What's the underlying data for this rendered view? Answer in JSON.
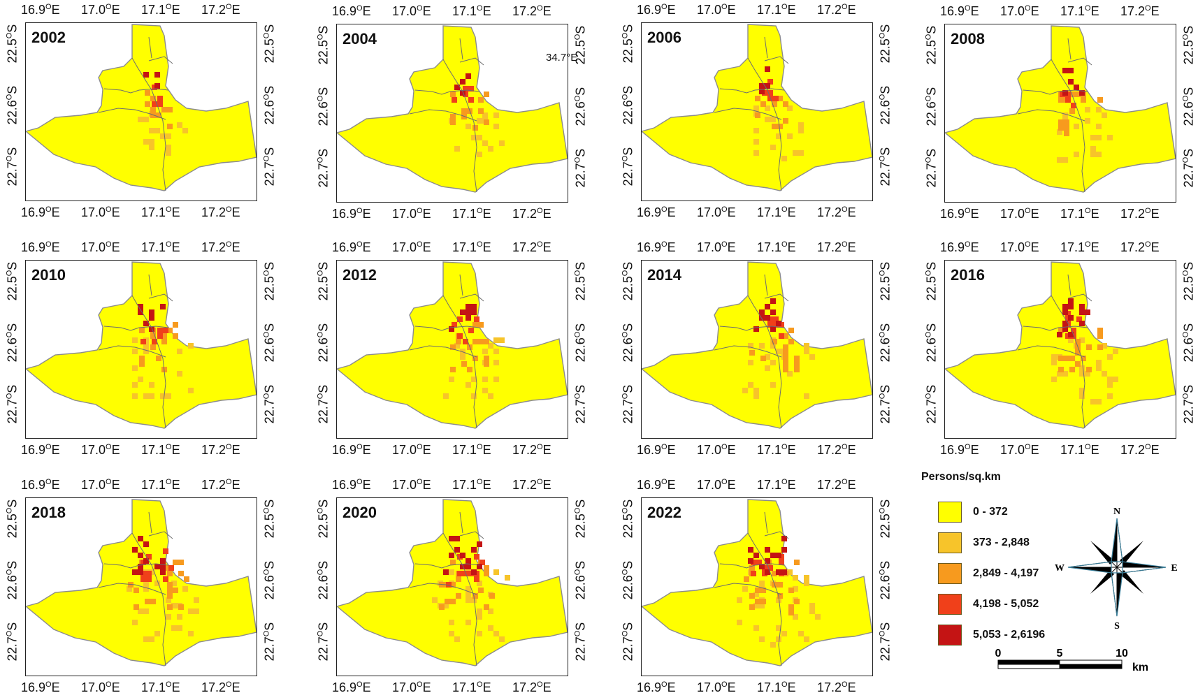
{
  "panels": [
    {
      "year": "2002",
      "note": ""
    },
    {
      "year": "2004",
      "note": "34.7°E"
    },
    {
      "year": "2006",
      "note": ""
    },
    {
      "year": "2008",
      "note": ""
    },
    {
      "year": "2010",
      "note": ""
    },
    {
      "year": "2012",
      "note": ""
    },
    {
      "year": "2014",
      "note": ""
    },
    {
      "year": "2016",
      "note": ""
    },
    {
      "year": "2018",
      "note": ""
    },
    {
      "year": "2020",
      "note": ""
    },
    {
      "year": "2022",
      "note": ""
    }
  ],
  "axes": {
    "longitude_ticks": [
      "16.9",
      "17.0",
      "17.1",
      "17.2"
    ],
    "longitude_suffix": "E",
    "latitude_ticks": [
      "22.5",
      "22.6",
      "22.7"
    ],
    "latitude_suffix": "S",
    "degree_symbol": "O"
  },
  "legend": {
    "title": "Persons/sq.km",
    "classes": [
      {
        "label": "0 - 372",
        "color": "#ffff00"
      },
      {
        "label": "373 - 2,848",
        "color": "#f7c42a"
      },
      {
        "label": "2,849 - 4,197",
        "color": "#f79a1e"
      },
      {
        "label": "4,198 - 5,052",
        "color": "#f0401a"
      },
      {
        "label": "5,053 - 2,6196",
        "color": "#c41414"
      }
    ]
  },
  "compass": {
    "north": "N",
    "south": "S",
    "east": "E",
    "west": "W"
  },
  "scale_bar": {
    "ticks": [
      "0",
      "5",
      "10"
    ],
    "unit": "km"
  },
  "colors": {
    "land": "#ffff00",
    "boundary": "#8c8c8c",
    "low": "#f7c42a",
    "mid": "#f79a1e",
    "high": "#f0401a",
    "very_high": "#c41414"
  }
}
